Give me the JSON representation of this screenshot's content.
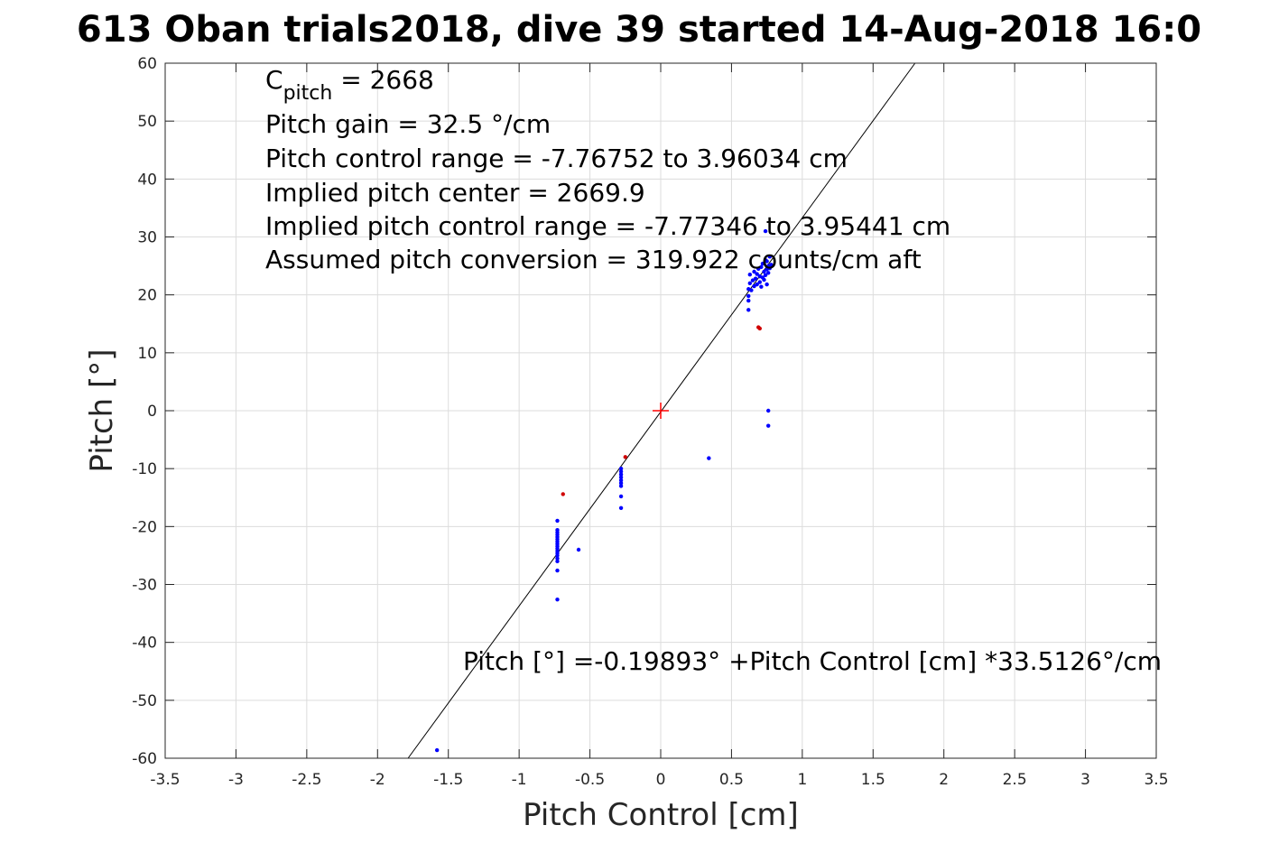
{
  "chart_data": {
    "type": "scatter",
    "title": "613 Oban trials2018, dive 39 started 14-Aug-2018 16:0",
    "xlabel": "Pitch Control [cm]",
    "ylabel": "Pitch [°]",
    "xlim": [
      -3.5,
      3.5
    ],
    "ylim": [
      -60,
      60
    ],
    "xticks": [
      "-3.5",
      "-3",
      "-2.5",
      "-2",
      "-1.5",
      "-1",
      "-0.5",
      "0",
      "0.5",
      "1",
      "1.5",
      "2",
      "2.5",
      "3",
      "3.5"
    ],
    "yticks": [
      "-60",
      "-50",
      "-40",
      "-30",
      "-20",
      "-10",
      "0",
      "10",
      "20",
      "30",
      "40",
      "50",
      "60"
    ],
    "grid": true,
    "colors": {
      "primary": "#0000ff",
      "flagged": "#d00000",
      "fit": "#000000",
      "center": "#ff0000"
    },
    "annotations": {
      "c_pitch_sym": "C",
      "c_pitch_sub": "pitch",
      "c_pitch_value": " = 2668",
      "lines": [
        "Pitch gain = 32.5 °/cm",
        "Pitch control range = -7.76752 to 3.96034 cm",
        "Implied pitch center = 2669.9",
        "Implied pitch control range = -7.77346 to 3.95441 cm",
        "Assumed pitch conversion = 319.922 counts/cm aft"
      ],
      "fit_equation": "Pitch [°] =-0.19893° +Pitch Control [cm] *33.5126°/cm"
    },
    "fit_line": {
      "intercept": -0.19893,
      "slope": 33.5126
    },
    "center_marker": {
      "x": 0,
      "y": 0
    },
    "series": [
      {
        "color": "#0000ff",
        "points": [
          [
            -1.58,
            -58.6
          ],
          [
            -0.73,
            -32.6
          ],
          [
            -0.73,
            -27.6
          ],
          [
            -0.73,
            -26.0
          ],
          [
            -0.73,
            -25.5
          ],
          [
            -0.73,
            -25.0
          ],
          [
            -0.73,
            -24.6
          ],
          [
            -0.73,
            -24.2
          ],
          [
            -0.73,
            -23.8
          ],
          [
            -0.73,
            -23.4
          ],
          [
            -0.73,
            -23.0
          ],
          [
            -0.73,
            -22.6
          ],
          [
            -0.73,
            -22.2
          ],
          [
            -0.73,
            -21.8
          ],
          [
            -0.73,
            -21.4
          ],
          [
            -0.73,
            -21.0
          ],
          [
            -0.73,
            -20.6
          ],
          [
            -0.73,
            -19.0
          ],
          [
            -0.58,
            -24.0
          ],
          [
            -0.28,
            -16.8
          ],
          [
            -0.28,
            -14.8
          ],
          [
            -0.28,
            -13.0
          ],
          [
            -0.28,
            -12.5
          ],
          [
            -0.28,
            -12.0
          ],
          [
            -0.28,
            -11.5
          ],
          [
            -0.28,
            -11.0
          ],
          [
            -0.28,
            -10.5
          ],
          [
            -0.28,
            -10.0
          ],
          [
            0.34,
            -8.2
          ],
          [
            0.62,
            17.4
          ],
          [
            0.62,
            19.0
          ],
          [
            0.62,
            19.8
          ],
          [
            0.62,
            21.0
          ],
          [
            0.63,
            22.0
          ],
          [
            0.63,
            23.5
          ],
          [
            0.64,
            20.8
          ],
          [
            0.65,
            22.5
          ],
          [
            0.66,
            21.5
          ],
          [
            0.66,
            24.0
          ],
          [
            0.67,
            22.8
          ],
          [
            0.68,
            23.6
          ],
          [
            0.68,
            21.8
          ],
          [
            0.69,
            24.5
          ],
          [
            0.7,
            22.2
          ],
          [
            0.7,
            23.2
          ],
          [
            0.71,
            24.8
          ],
          [
            0.71,
            21.4
          ],
          [
            0.72,
            23.0
          ],
          [
            0.72,
            25.4
          ],
          [
            0.73,
            22.6
          ],
          [
            0.73,
            24.0
          ],
          [
            0.74,
            26.0
          ],
          [
            0.74,
            23.4
          ],
          [
            0.74,
            31.0
          ],
          [
            0.75,
            24.4
          ],
          [
            0.75,
            25.8
          ],
          [
            0.75,
            21.8
          ],
          [
            0.76,
            23.8
          ],
          [
            0.76,
            25.0
          ],
          [
            0.77,
            24.6
          ],
          [
            0.77,
            26.6
          ],
          [
            0.78,
            25.2
          ],
          [
            0.76,
            0.0
          ],
          [
            0.76,
            -2.6
          ]
        ]
      },
      {
        "color": "#d00000",
        "points": [
          [
            -0.69,
            -14.4
          ],
          [
            -0.25,
            -8.0
          ],
          [
            0.69,
            14.4
          ],
          [
            0.7,
            14.2
          ]
        ]
      }
    ]
  }
}
